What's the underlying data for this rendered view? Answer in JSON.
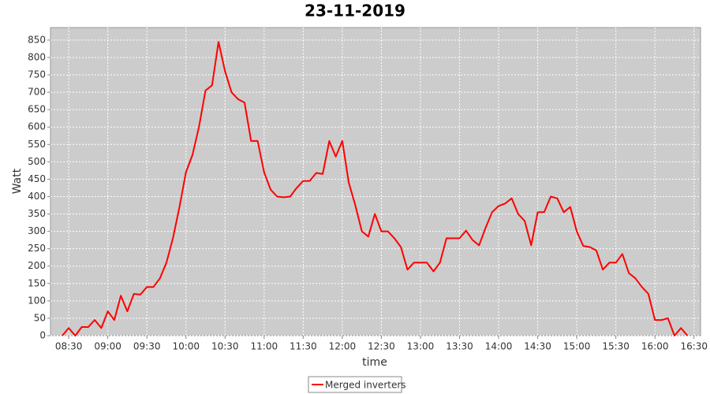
{
  "chart_data": {
    "type": "line",
    "title": "23-11-2019",
    "x_label": "time",
    "y_label": "Watt",
    "x": [
      "08:25",
      "08:30",
      "08:35",
      "08:40",
      "08:45",
      "08:50",
      "08:55",
      "09:00",
      "09:05",
      "09:10",
      "09:15",
      "09:20",
      "09:25",
      "09:30",
      "09:35",
      "09:40",
      "09:45",
      "09:50",
      "09:55",
      "10:00",
      "10:05",
      "10:10",
      "10:15",
      "10:20",
      "10:25",
      "10:30",
      "10:35",
      "10:40",
      "10:45",
      "10:50",
      "10:55",
      "11:00",
      "11:05",
      "11:10",
      "11:15",
      "11:20",
      "11:25",
      "11:30",
      "11:35",
      "11:40",
      "11:45",
      "11:50",
      "11:55",
      "12:00",
      "12:05",
      "12:10",
      "12:15",
      "12:20",
      "12:25",
      "12:30",
      "12:35",
      "12:40",
      "12:45",
      "12:50",
      "12:55",
      "13:00",
      "13:05",
      "13:10",
      "13:15",
      "13:20",
      "13:25",
      "13:30",
      "13:35",
      "13:40",
      "13:45",
      "13:50",
      "13:55",
      "14:00",
      "14:05",
      "14:10",
      "14:15",
      "14:20",
      "14:25",
      "14:30",
      "14:35",
      "14:40",
      "14:45",
      "14:50",
      "14:55",
      "15:00",
      "15:05",
      "15:10",
      "15:15",
      "15:20",
      "15:25",
      "15:30",
      "15:35",
      "15:40",
      "15:45",
      "15:50",
      "15:55",
      "16:00",
      "16:05",
      "16:10",
      "16:15",
      "16:20",
      "16:25"
    ],
    "series": [
      {
        "name": "Merged inverters",
        "color": "#ff0000",
        "values": [
          0,
          22,
          0,
          25,
          25,
          45,
          22,
          70,
          45,
          115,
          70,
          120,
          118,
          140,
          140,
          165,
          210,
          280,
          370,
          470,
          520,
          600,
          705,
          720,
          845,
          760,
          700,
          680,
          670,
          560,
          560,
          470,
          420,
          400,
          398,
          400,
          425,
          445,
          445,
          468,
          465,
          560,
          515,
          560,
          440,
          375,
          300,
          285,
          350,
          300,
          300,
          280,
          255,
          190,
          210,
          210,
          210,
          185,
          210,
          280,
          280,
          280,
          302,
          275,
          260,
          310,
          355,
          373,
          380,
          395,
          350,
          330,
          260,
          355,
          355,
          400,
          395,
          355,
          370,
          300,
          258,
          255,
          245,
          190,
          210,
          210,
          235,
          180,
          165,
          140,
          120,
          45,
          45,
          50,
          0,
          22,
          0
        ]
      }
    ],
    "xlim": [
      "08:16",
      "16:35"
    ],
    "xticks": [
      "08:30",
      "09:00",
      "09:30",
      "10:00",
      "10:30",
      "11:00",
      "11:30",
      "12:00",
      "12:30",
      "13:00",
      "13:30",
      "14:00",
      "14:30",
      "15:00",
      "15:30",
      "16:00",
      "16:30"
    ],
    "ylim": [
      0,
      886
    ],
    "yticks": [
      0,
      50,
      100,
      150,
      200,
      250,
      300,
      350,
      400,
      450,
      500,
      550,
      600,
      650,
      700,
      750,
      800,
      850
    ],
    "grid": true,
    "legend": "bottom"
  }
}
